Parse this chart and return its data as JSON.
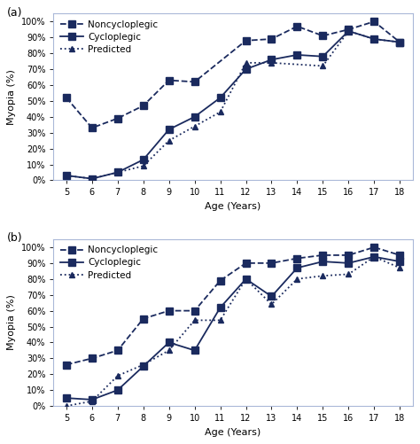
{
  "ages": [
    5,
    6,
    7,
    8,
    9,
    10,
    11,
    12,
    13,
    14,
    15,
    16,
    17,
    18
  ],
  "panel_a": {
    "noncycloplegic": [
      52,
      33,
      39,
      47,
      63,
      62,
      null,
      88,
      89,
      97,
      91,
      95,
      100,
      87
    ],
    "cycloplegic": [
      3,
      1,
      5,
      13,
      32,
      40,
      52,
      70,
      76,
      79,
      78,
      94,
      89,
      87
    ],
    "predicted": [
      3,
      1,
      5,
      9,
      25,
      34,
      43,
      74,
      74,
      null,
      72,
      94,
      89,
      87
    ]
  },
  "panel_b": {
    "noncycloplegic": [
      26,
      30,
      35,
      55,
      60,
      60,
      79,
      90,
      90,
      93,
      95,
      95,
      100,
      95
    ],
    "cycloplegic": [
      5,
      4,
      10,
      25,
      40,
      35,
      62,
      80,
      69,
      87,
      91,
      90,
      94,
      91
    ],
    "predicted": [
      0,
      3,
      19,
      26,
      35,
      54,
      54,
      80,
      64,
      80,
      82,
      83,
      94,
      87
    ]
  },
  "color": "#1a2a5e",
  "spine_color": "#aab8d8",
  "label_fontsize": 8,
  "tick_fontsize": 7,
  "legend_fontsize": 7.5,
  "figsize": [
    4.74,
    5.01
  ],
  "dpi": 100
}
